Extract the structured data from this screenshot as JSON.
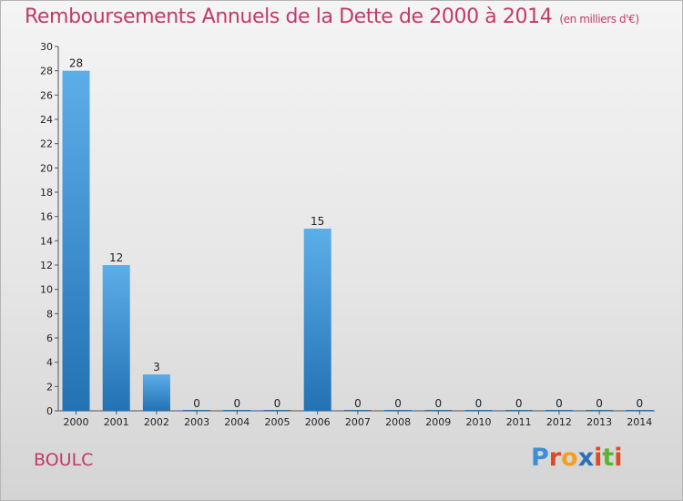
{
  "title": "Remboursements Annuels de la Dette de 2000 à 2014",
  "unit": "(en milliers d'€)",
  "commune": "BOULC",
  "logo": {
    "text": "Proxiti",
    "colors": [
      "#3a8fd6",
      "#e04a1f",
      "#f2a024",
      "#2c6fb8",
      "#e04a1f",
      "#5cb531",
      "#e04a1f"
    ]
  },
  "colors": {
    "bar_light": "#5caee8",
    "bar_dark": "#2272b4",
    "text_accent": "#c23a6a"
  },
  "chart_data": {
    "type": "bar",
    "title": "Remboursements Annuels de la Dette de 2000 à 2014",
    "xlabel": "",
    "ylabel": "",
    "categories": [
      "2000",
      "2001",
      "2002",
      "2003",
      "2004",
      "2005",
      "2006",
      "2007",
      "2008",
      "2009",
      "2010",
      "2011",
      "2012",
      "2013",
      "2014"
    ],
    "values": [
      28,
      12,
      3,
      0,
      0,
      0,
      15,
      0,
      0,
      0,
      0,
      0,
      0,
      0,
      0
    ],
    "ylim": [
      0,
      30
    ],
    "yticks": [
      0,
      2,
      4,
      6,
      8,
      10,
      12,
      14,
      16,
      18,
      20,
      22,
      24,
      26,
      28,
      30
    ],
    "grid": false,
    "legend": "none"
  }
}
